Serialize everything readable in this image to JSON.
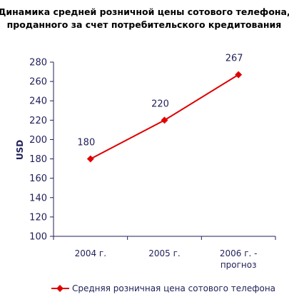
{
  "chart_data": {
    "type": "line",
    "title_lines": [
      "Динамика средней розничной цены сотового телефона,",
      "проданного за счет потребительского кредитования"
    ],
    "ylabel": "USD",
    "xlabel": "",
    "categories": [
      [
        "2004 г."
      ],
      [
        "2005 г."
      ],
      [
        "2006 г. -",
        "прогноз"
      ]
    ],
    "series": [
      {
        "name": "Средняя розничная цена сотового телефона",
        "values": [
          180,
          220,
          267
        ],
        "data_labels": [
          "180",
          "220",
          "267"
        ],
        "color": "#e00000"
      }
    ],
    "ylim": [
      100,
      280
    ],
    "ytick_step": 20,
    "grid": false,
    "legend_position": "bottom",
    "axis_color": "#1f1f5a"
  }
}
